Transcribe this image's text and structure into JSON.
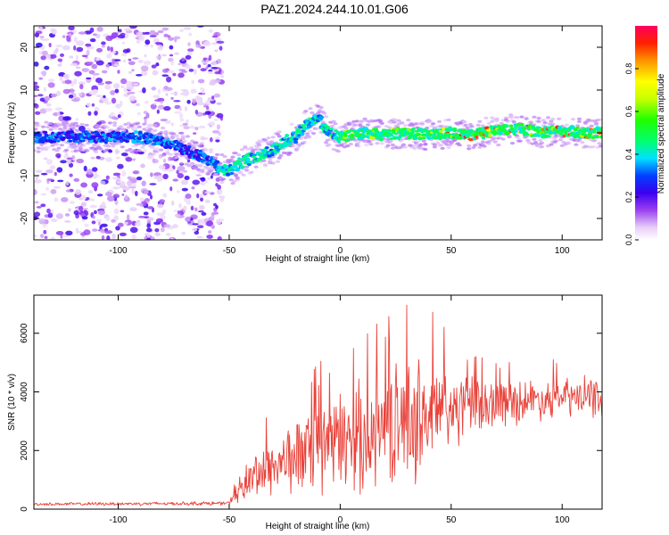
{
  "figure": {
    "title": "PAZ1.2024.244.10.01.G06"
  },
  "chart_data": [
    {
      "type": "heatmap",
      "xlabel": "Height of straight line (km)",
      "ylabel": "Frequency (Hz)",
      "xlim": [
        -138,
        118
      ],
      "ylim": [
        -25,
        25
      ],
      "x_ticks": [
        -100,
        -50,
        0,
        50,
        100
      ],
      "y_ticks": [
        -20,
        -10,
        0,
        10,
        20
      ],
      "colorbar": {
        "label": "Normalized spectral amplitude",
        "range": [
          0,
          1
        ],
        "ticks": [
          "0.0",
          "0.2",
          "0.4",
          "0.6",
          "0.8"
        ],
        "tick_values": [
          0.0,
          0.2,
          0.4,
          0.6,
          0.8
        ]
      },
      "ridge": {
        "x": [
          -138,
          -120,
          -100,
          -90,
          -80,
          -70,
          -65,
          -60,
          -55,
          -50,
          -45,
          -40,
          -35,
          -30,
          -25,
          -20,
          -15,
          -12,
          -10,
          -8,
          -5,
          0,
          10,
          20,
          30,
          40,
          50,
          60,
          70,
          80,
          90,
          100,
          110,
          118
        ],
        "frequency": [
          -1,
          -1,
          -1,
          -1,
          -2,
          -4,
          -5,
          -6,
          -8,
          -9,
          -7,
          -6,
          -5,
          -4,
          -2,
          -1,
          2,
          3,
          4,
          2,
          0,
          -1,
          0,
          -0.5,
          0,
          -0.5,
          0,
          -0.5,
          0.5,
          1,
          0,
          0.5,
          0,
          0
        ]
      }
    },
    {
      "type": "line",
      "xlabel": "Height of straight line (km)",
      "ylabel": "SNR (10 * v/v)",
      "xlim": [
        -138,
        118
      ],
      "ylim": [
        0,
        7300
      ],
      "x_ticks": [
        -100,
        -50,
        0,
        50,
        100
      ],
      "y_ticks": [
        0,
        2000,
        4000,
        6000
      ],
      "series": [
        {
          "color": "#e8423a",
          "envelope_x": [
            -138,
            -50,
            -45,
            -40,
            -30,
            -20,
            -10,
            0,
            10,
            20,
            30,
            40,
            50,
            60,
            70,
            80,
            90,
            100,
            110,
            118
          ],
          "envelope_mean": [
            170,
            200,
            700,
            1100,
            1500,
            1800,
            2000,
            2300,
            2500,
            2800,
            3000,
            3200,
            3400,
            3500,
            3600,
            3700,
            3750,
            3800,
            3800,
            3800
          ],
          "envelope_amplitude": [
            60,
            80,
            600,
            900,
            1200,
            1500,
            1800,
            2000,
            2200,
            2300,
            2400,
            2500,
            1600,
            1200,
            1000,
            900,
            800,
            800,
            800,
            800
          ]
        }
      ]
    }
  ]
}
